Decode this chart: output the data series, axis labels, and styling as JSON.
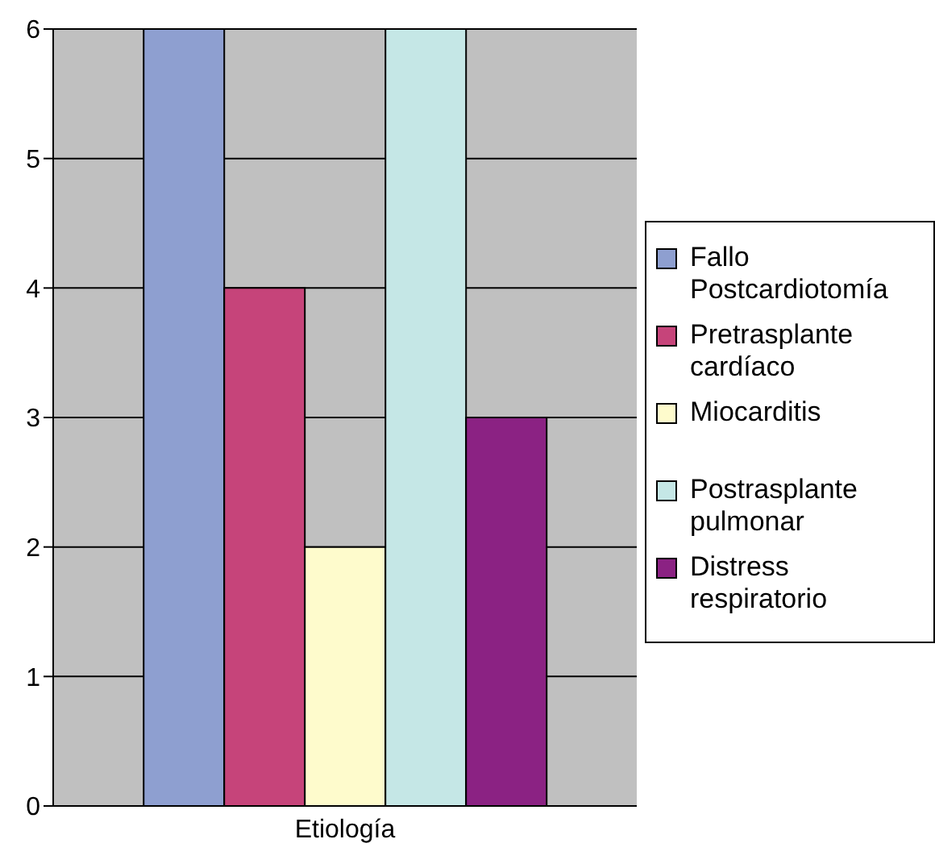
{
  "chart_data": {
    "type": "bar",
    "categories": [
      "Etiología"
    ],
    "series": [
      {
        "name": "Fallo Postcardiotomía",
        "color": "#8e9fd0",
        "values": [
          6
        ]
      },
      {
        "name": "Pretrasplante cardíaco",
        "color": "#c6447a",
        "values": [
          4
        ]
      },
      {
        "name": "Miocarditis",
        "color": "#fefbcc",
        "values": [
          2
        ]
      },
      {
        "name": "Postrasplante pulmonar",
        "color": "#c5e7e6",
        "values": [
          6
        ]
      },
      {
        "name": "Distress respiratorio",
        "color": "#8b2283",
        "values": [
          3
        ]
      }
    ],
    "ylim": [
      0,
      6
    ],
    "yticks": [
      0,
      1,
      2,
      3,
      4,
      5,
      6
    ],
    "grid": "y",
    "legend": "right"
  }
}
